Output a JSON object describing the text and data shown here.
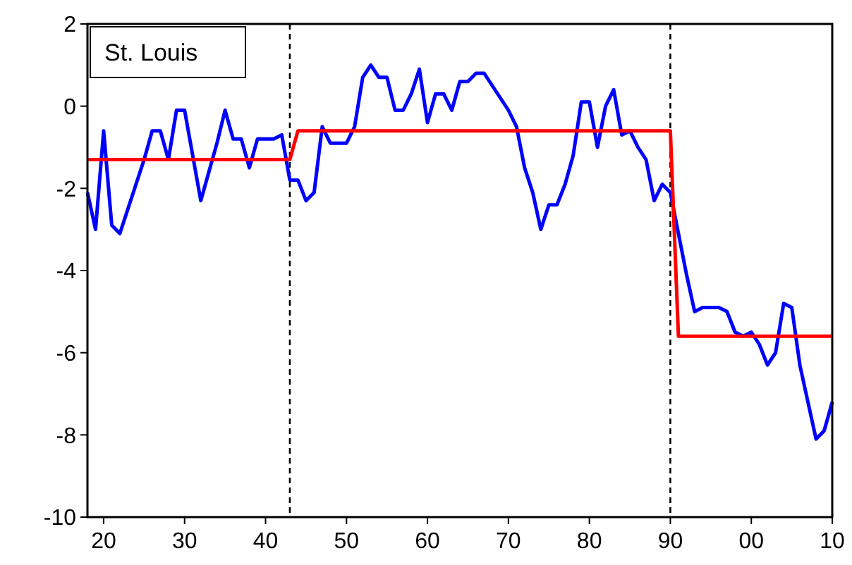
{
  "chart_data": {
    "type": "line",
    "title": "St. Louis",
    "xlim": [
      1918,
      2010
    ],
    "ylim": [
      -10,
      2
    ],
    "xticks": [
      {
        "value": 1920,
        "label": "20"
      },
      {
        "value": 1930,
        "label": "30"
      },
      {
        "value": 1940,
        "label": "40"
      },
      {
        "value": 1950,
        "label": "50"
      },
      {
        "value": 1960,
        "label": "60"
      },
      {
        "value": 1970,
        "label": "70"
      },
      {
        "value": 1980,
        "label": "80"
      },
      {
        "value": 1990,
        "label": "90"
      },
      {
        "value": 2000,
        "label": "00"
      },
      {
        "value": 2010,
        "label": "10"
      }
    ],
    "yticks": [
      -10,
      -8,
      -6,
      -4,
      -2,
      0,
      2
    ],
    "grid": false,
    "marker": "none",
    "ref_lines": [
      {
        "axis": "x",
        "value": 1943,
        "color": "#000000",
        "line_style": "dashed"
      },
      {
        "axis": "x",
        "value": 1990,
        "color": "#000000",
        "line_style": "dashed"
      }
    ],
    "series": [
      {
        "color": "#0000ff",
        "x": [
          1918,
          1919,
          1920,
          1921,
          1922,
          1923,
          1924,
          1925,
          1926,
          1927,
          1928,
          1929,
          1930,
          1931,
          1932,
          1933,
          1934,
          1935,
          1936,
          1937,
          1938,
          1939,
          1940,
          1941,
          1942,
          1943,
          1944,
          1945,
          1946,
          1947,
          1948,
          1949,
          1950,
          1951,
          1952,
          1953,
          1954,
          1955,
          1956,
          1957,
          1958,
          1959,
          1960,
          1961,
          1962,
          1963,
          1964,
          1965,
          1966,
          1967,
          1968,
          1969,
          1970,
          1971,
          1972,
          1973,
          1974,
          1975,
          1976,
          1977,
          1978,
          1979,
          1980,
          1981,
          1982,
          1983,
          1984,
          1985,
          1986,
          1987,
          1988,
          1989,
          1990,
          1991,
          1992,
          1993,
          1994,
          1995,
          1996,
          1997,
          1998,
          1999,
          2000,
          2001,
          2002,
          2003,
          2004,
          2005,
          2006,
          2007,
          2008,
          2009,
          2010
        ],
        "values": [
          -2.1,
          -3.0,
          -0.6,
          -2.9,
          -3.1,
          -2.5,
          -1.9,
          -1.3,
          -0.6,
          -0.6,
          -1.3,
          -0.1,
          -0.1,
          -1.2,
          -2.3,
          -1.6,
          -0.9,
          -0.1,
          -0.8,
          -0.8,
          -1.5,
          -0.8,
          -0.8,
          -0.8,
          -0.7,
          -1.8,
          -1.8,
          -2.3,
          -2.1,
          -0.5,
          -0.9,
          -0.9,
          -0.9,
          -0.5,
          0.7,
          1.0,
          0.7,
          0.7,
          -0.1,
          -0.1,
          0.3,
          0.9,
          -0.4,
          0.3,
          0.3,
          -0.1,
          0.6,
          0.6,
          0.8,
          0.8,
          0.5,
          0.2,
          -0.1,
          -0.5,
          -1.5,
          -2.1,
          -3.0,
          -2.4,
          -2.4,
          -1.9,
          -1.2,
          0.1,
          0.1,
          -1.0,
          0.0,
          0.4,
          -0.7,
          -0.6,
          -1.0,
          -1.3,
          -2.3,
          -1.9,
          -2.1,
          -3.1,
          -4.1,
          -5.0,
          -4.9,
          -4.9,
          -4.9,
          -5.0,
          -5.5,
          -5.6,
          -5.5,
          -5.8,
          -6.3,
          -6.0,
          -4.8,
          -4.9,
          -6.3,
          -7.2,
          -8.1,
          -7.9,
          -7.2
        ]
      },
      {
        "color": "#ff0000",
        "x": [
          1918,
          1943,
          1944,
          1990,
          1991,
          2010
        ],
        "values": [
          -1.3,
          -1.3,
          -0.6,
          -0.6,
          -5.6,
          -5.6
        ]
      }
    ]
  }
}
